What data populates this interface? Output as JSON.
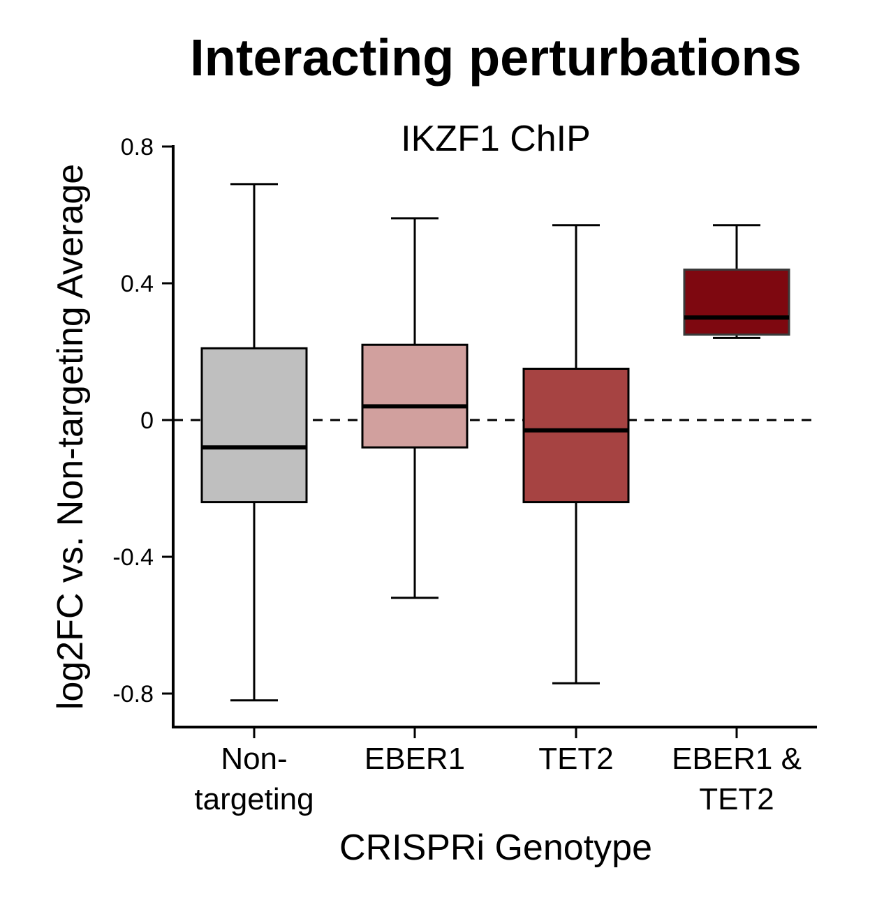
{
  "chart_data": {
    "type": "box",
    "title": "Interacting perturbations",
    "subtitle": "IKZF1 ChIP",
    "xlabel": "CRISPRi Genotype",
    "ylabel": "log2FC vs. Non-targeting Average",
    "ylim": [
      -0.9,
      0.8
    ],
    "yticks": [
      0.8,
      0.4,
      0,
      -0.4,
      -0.8
    ],
    "ytick_labels": [
      "0.8",
      "0.4",
      "0",
      "-0.4",
      "-0.8"
    ],
    "reference_line": {
      "y": 0,
      "style": "dashed"
    },
    "grid": false,
    "categories": [
      [
        "Non-",
        "targeting"
      ],
      [
        "EBER1"
      ],
      [
        "TET2"
      ],
      [
        "EBER1 &",
        "TET2"
      ]
    ],
    "boxes": [
      {
        "whisker_low": -0.82,
        "q1": -0.24,
        "median": -0.08,
        "q3": 0.21,
        "whisker_high": 0.69,
        "color": "#bfbfbf"
      },
      {
        "whisker_low": -0.52,
        "q1": -0.08,
        "median": 0.04,
        "q3": 0.22,
        "whisker_high": 0.59,
        "color": "#d1a09e"
      },
      {
        "whisker_low": -0.77,
        "q1": -0.24,
        "median": -0.03,
        "q3": 0.15,
        "whisker_high": 0.57,
        "color": "#a64342"
      },
      {
        "whisker_low": 0.24,
        "q1": 0.25,
        "median": 0.3,
        "q3": 0.44,
        "whisker_high": 0.57,
        "color": "#7e0810"
      }
    ]
  }
}
